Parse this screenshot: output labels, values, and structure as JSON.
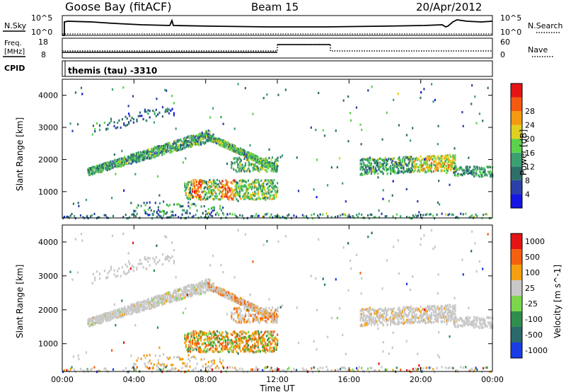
{
  "header": {
    "station": "Goose Bay (fitACF)",
    "beam": "Beam 15",
    "date": "20/Apr/2012"
  },
  "strip_panels": {
    "nsky": {
      "label": "N.Sky",
      "left_ticks": [
        "10^5",
        "10^0"
      ],
      "right_ticks": [
        "10^5",
        "10^0"
      ],
      "right_label": "N.Search"
    },
    "freq": {
      "label_line1": "Freq.",
      "label_line2": "[MHz]",
      "left_ticks": [
        "18",
        "8"
      ],
      "right_ticks": [
        "60",
        "0"
      ],
      "right_label": "Nave"
    },
    "cpid": {
      "label": "CPID",
      "text": "themis (tau) -3310"
    }
  },
  "chart_data": [
    {
      "type": "heatmap",
      "title": "",
      "ylabel": "Slant Range [km]",
      "xlabel": "",
      "xlim": [
        0,
        24
      ],
      "ylim": [
        180,
        4500
      ],
      "yticks": [
        "1000",
        "2000",
        "3000",
        "4000"
      ],
      "colorbar": {
        "label": "Power [dB]",
        "ticks": [
          "4",
          "8",
          "12",
          "16",
          "20",
          "24",
          "28"
        ],
        "colors": [
          "#1515e6",
          "#2a3fa8",
          "#2f6f6a",
          "#3aa070",
          "#5bd24a",
          "#e0d020",
          "#f59a10",
          "#f55a10",
          "#e61515"
        ]
      },
      "echo_regions": [
        {
          "t0": 1.4,
          "t1": 8.2,
          "r0": 1550,
          "r1": 2850,
          "power_db": 12,
          "desc": "band"
        },
        {
          "t0": 8.1,
          "t1": 12.0,
          "r0": 1750,
          "r1": 2850,
          "power_db": 12
        },
        {
          "t0": 6.8,
          "t1": 12.0,
          "r0": 800,
          "r1": 1400,
          "power_db": 16
        },
        {
          "t0": 17.0,
          "t1": 21.8,
          "r0": 1600,
          "r1": 2050,
          "power_db": 14
        },
        {
          "t0": 21.8,
          "t1": 24.0,
          "r0": 1550,
          "r1": 1800,
          "power_db": 10
        },
        {
          "t0": 3.0,
          "t1": 5.8,
          "r0": 2800,
          "r1": 3600,
          "power_db": 6
        }
      ]
    },
    {
      "type": "heatmap",
      "title": "",
      "ylabel": "Slant Range [km]",
      "xlabel": "Time UT",
      "xlim": [
        0,
        24
      ],
      "ylim": [
        180,
        4500
      ],
      "xticks": [
        "00:00",
        "04:00",
        "08:00",
        "12:00",
        "16:00",
        "20:00",
        "00:00"
      ],
      "yticks": [
        "1000",
        "2000",
        "3000",
        "4000"
      ],
      "colorbar": {
        "label": "Velocity [m s^-1]",
        "ticks": [
          "1000",
          "500",
          "100",
          "25",
          "-25",
          "-100",
          "-500",
          "-1000"
        ],
        "colors": [
          "#1a3ce6",
          "#2a6a6a",
          "#2e8e4e",
          "#7cd64a",
          "#c8c8c8",
          "#f5a010",
          "#f56010",
          "#e61515"
        ]
      },
      "ground_scatter_color": "#c8c8c8"
    }
  ]
}
